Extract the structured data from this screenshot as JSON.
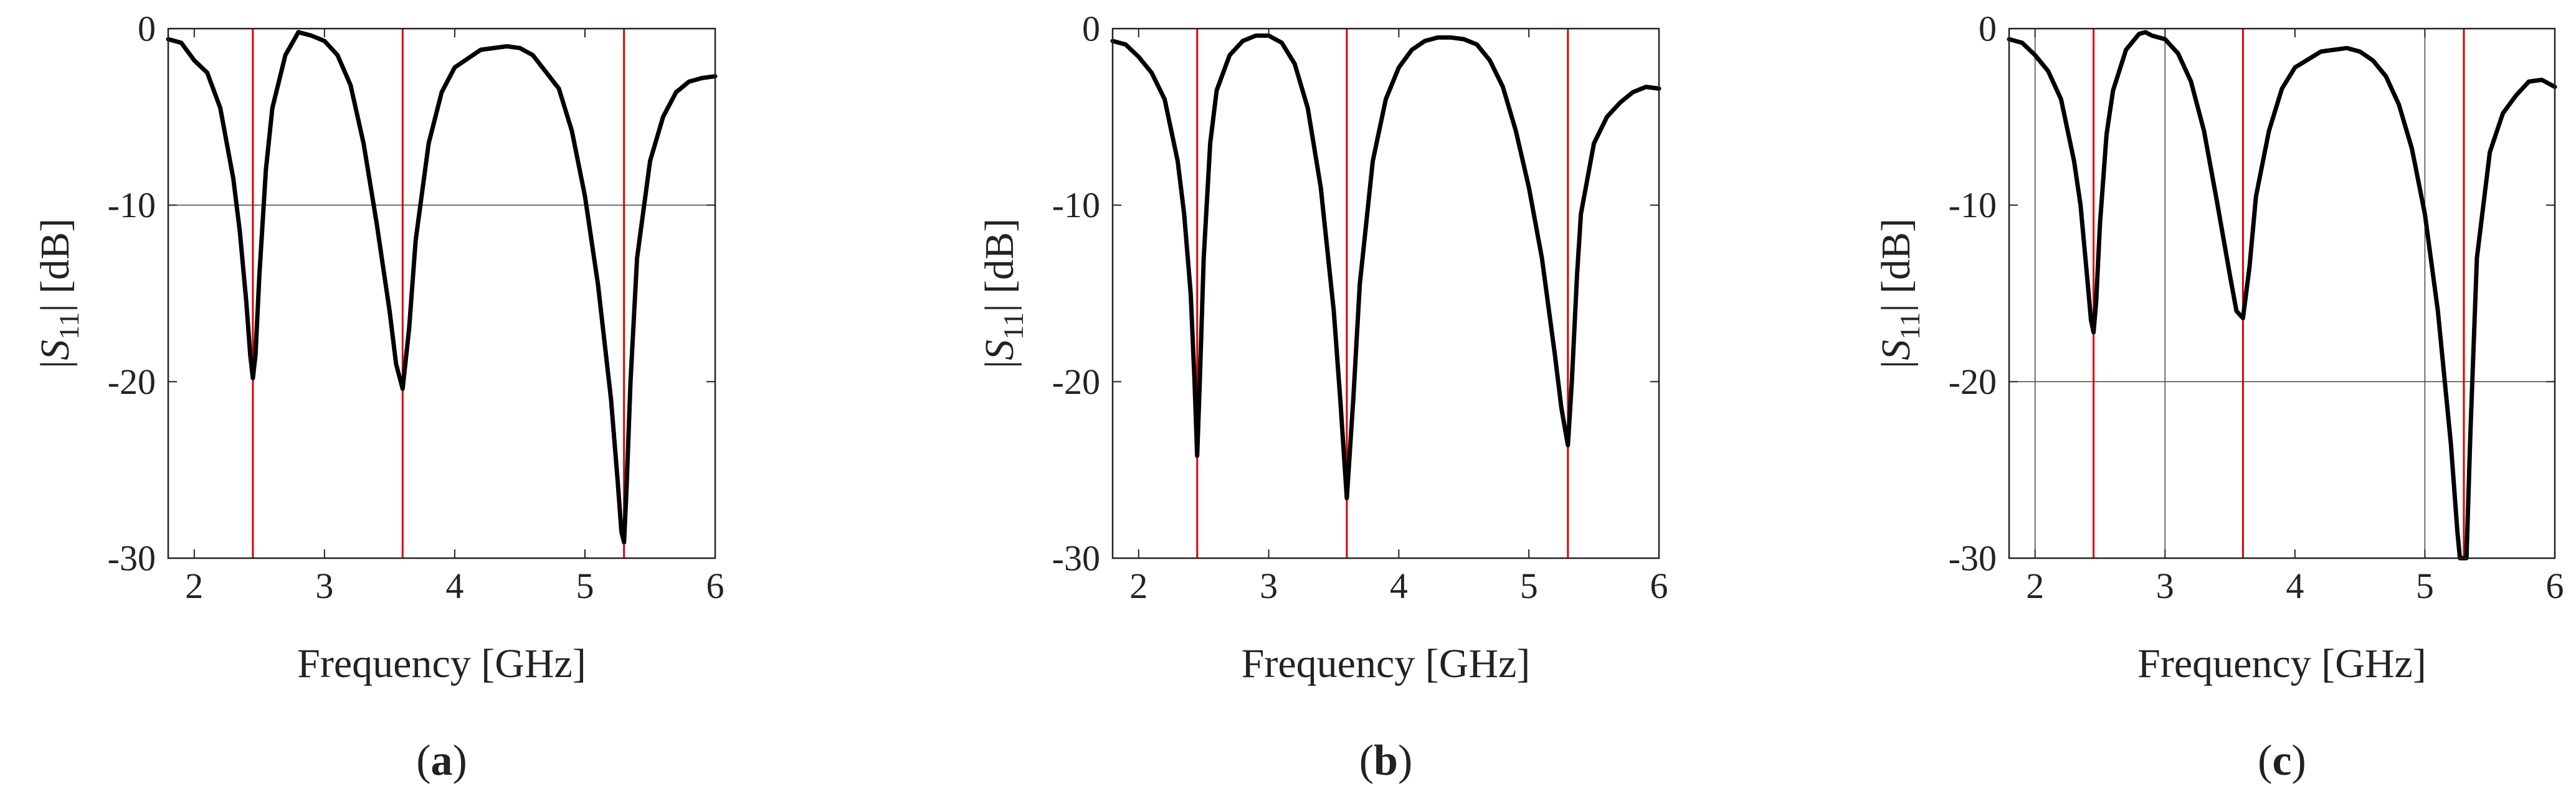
{
  "figure": {
    "colors": {
      "curve": "#000000",
      "marker": "#e00000",
      "grid": "#444444",
      "axis": "#222222"
    }
  },
  "chart_data": [
    {
      "type": "line",
      "panel_label": "a",
      "xlabel": "Frequency [GHz]",
      "ylabel_prefix": "|",
      "ylabel_var": "S",
      "ylabel_sub": "11",
      "ylabel_suffix": "| [dB]",
      "xlim": [
        1.8,
        6
      ],
      "ylim": [
        -30,
        0
      ],
      "xticks": [
        2,
        3,
        4,
        5,
        6
      ],
      "yticks": [
        0,
        -10,
        -20,
        -30
      ],
      "xtick_labels": [
        "2",
        "3",
        "4",
        "5",
        "6"
      ],
      "ytick_labels": [
        "0",
        "-10",
        "-20",
        "-30"
      ],
      "hgrid": [
        -10
      ],
      "vgrid": [],
      "markers_x": [
        2.45,
        3.6,
        5.3
      ],
      "series": [
        {
          "name": "|S11|",
          "x": [
            1.8,
            1.9,
            2.0,
            2.1,
            2.2,
            2.3,
            2.35,
            2.4,
            2.43,
            2.45,
            2.47,
            2.5,
            2.55,
            2.6,
            2.7,
            2.8,
            2.85,
            2.9,
            3.0,
            3.1,
            3.2,
            3.3,
            3.4,
            3.5,
            3.55,
            3.6,
            3.65,
            3.7,
            3.8,
            3.9,
            4.0,
            4.2,
            4.4,
            4.5,
            4.6,
            4.8,
            4.9,
            5.0,
            5.1,
            5.2,
            5.25,
            5.28,
            5.3,
            5.32,
            5.35,
            5.4,
            5.5,
            5.6,
            5.7,
            5.8,
            5.9,
            6.0
          ],
          "y": [
            -0.6,
            -0.8,
            -1.8,
            -2.5,
            -4.5,
            -8.5,
            -11.5,
            -15.5,
            -18.5,
            -19.8,
            -18.5,
            -14,
            -8,
            -4.5,
            -1.5,
            -0.2,
            -0.3,
            -0.4,
            -0.7,
            -1.5,
            -3.2,
            -6.5,
            -11,
            -16,
            -19,
            -20.4,
            -17,
            -12,
            -6.5,
            -3.6,
            -2.2,
            -1.2,
            -1.0,
            -1.1,
            -1.5,
            -3.4,
            -5.8,
            -9.5,
            -14.5,
            -21,
            -25.5,
            -28.5,
            -29.1,
            -26,
            -20,
            -13,
            -7.5,
            -5,
            -3.6,
            -3.0,
            -2.8,
            -2.7
          ]
        }
      ]
    },
    {
      "type": "line",
      "panel_label": "b",
      "xlabel": "Frequency [GHz]",
      "ylabel_prefix": "|",
      "ylabel_var": "S",
      "ylabel_sub": "11",
      "ylabel_suffix": "| [dB]",
      "xlim": [
        1.8,
        6
      ],
      "ylim": [
        -30,
        0
      ],
      "xticks": [
        2,
        3,
        4,
        5,
        6
      ],
      "yticks": [
        0,
        -10,
        -20,
        -30
      ],
      "xtick_labels": [
        "2",
        "3",
        "4",
        "5",
        "6"
      ],
      "ytick_labels": [
        "0",
        "-10",
        "-20",
        "-30"
      ],
      "hgrid": [],
      "vgrid": [],
      "markers_x": [
        2.45,
        3.6,
        5.3
      ],
      "series": [
        {
          "name": "|S11|",
          "x": [
            1.8,
            1.9,
            2.0,
            2.1,
            2.2,
            2.3,
            2.35,
            2.4,
            2.43,
            2.45,
            2.47,
            2.5,
            2.55,
            2.6,
            2.7,
            2.8,
            2.9,
            3.0,
            3.1,
            3.2,
            3.3,
            3.4,
            3.5,
            3.55,
            3.6,
            3.65,
            3.7,
            3.8,
            3.9,
            4.0,
            4.1,
            4.2,
            4.3,
            4.4,
            4.5,
            4.6,
            4.7,
            4.8,
            4.9,
            5.0,
            5.1,
            5.2,
            5.25,
            5.3,
            5.33,
            5.37,
            5.4,
            5.5,
            5.6,
            5.7,
            5.8,
            5.9,
            6.0
          ],
          "y": [
            -0.7,
            -0.9,
            -1.6,
            -2.5,
            -4.0,
            -7.5,
            -10.5,
            -15,
            -20,
            -24.2,
            -20,
            -13,
            -6.5,
            -3.5,
            -1.5,
            -0.7,
            -0.4,
            -0.4,
            -0.8,
            -2.0,
            -4.5,
            -9,
            -16,
            -21,
            -26.6,
            -21,
            -14.5,
            -7.5,
            -4,
            -2.2,
            -1.2,
            -0.7,
            -0.5,
            -0.5,
            -0.6,
            -0.9,
            -1.8,
            -3.3,
            -5.8,
            -9,
            -13,
            -18.5,
            -21.5,
            -23.6,
            -20,
            -14,
            -10.5,
            -6.5,
            -5,
            -4.2,
            -3.6,
            -3.3,
            -3.4
          ]
        }
      ]
    },
    {
      "type": "line",
      "panel_label": "c",
      "xlabel": "Frequency [GHz]",
      "ylabel_prefix": "|",
      "ylabel_var": "S",
      "ylabel_sub": "11",
      "ylabel_suffix": "| [dB]",
      "xlim": [
        1.8,
        6
      ],
      "ylim": [
        -30,
        0
      ],
      "xticks": [
        2,
        3,
        4,
        5,
        6
      ],
      "yticks": [
        0,
        -10,
        -20,
        -30
      ],
      "xtick_labels": [
        "2",
        "3",
        "4",
        "5",
        "6"
      ],
      "ytick_labels": [
        "0",
        "-10",
        "-20",
        "-30"
      ],
      "hgrid": [
        -20
      ],
      "vgrid": [
        2,
        3,
        5
      ],
      "markers_x": [
        2.45,
        3.6,
        5.3
      ],
      "series": [
        {
          "name": "|S11|",
          "x": [
            1.8,
            1.9,
            2.0,
            2.1,
            2.2,
            2.3,
            2.35,
            2.4,
            2.43,
            2.45,
            2.47,
            2.5,
            2.55,
            2.6,
            2.7,
            2.8,
            2.85,
            2.9,
            3.0,
            3.1,
            3.2,
            3.3,
            3.4,
            3.5,
            3.55,
            3.6,
            3.65,
            3.7,
            3.8,
            3.9,
            4.0,
            4.2,
            4.4,
            4.5,
            4.6,
            4.7,
            4.8,
            4.9,
            5.0,
            5.1,
            5.2,
            5.25,
            5.27,
            5.3,
            5.32,
            5.35,
            5.4,
            5.5,
            5.6,
            5.7,
            5.8,
            5.9,
            6.0
          ],
          "y": [
            -0.6,
            -0.8,
            -1.5,
            -2.4,
            -4.0,
            -7.5,
            -10,
            -14,
            -16.5,
            -17.2,
            -15.5,
            -11,
            -6,
            -3.5,
            -1.2,
            -0.3,
            -0.2,
            -0.4,
            -0.6,
            -1.4,
            -3.0,
            -5.8,
            -9.8,
            -14,
            -16,
            -16.4,
            -13.5,
            -9.5,
            -5.8,
            -3.4,
            -2.2,
            -1.3,
            -1.1,
            -1.3,
            -1.8,
            -2.7,
            -4.3,
            -6.8,
            -10.5,
            -16,
            -23.5,
            -28.5,
            -30,
            -30,
            -30,
            -23,
            -13,
            -7,
            -4.8,
            -3.8,
            -3.0,
            -2.9,
            -3.3
          ]
        }
      ]
    }
  ]
}
